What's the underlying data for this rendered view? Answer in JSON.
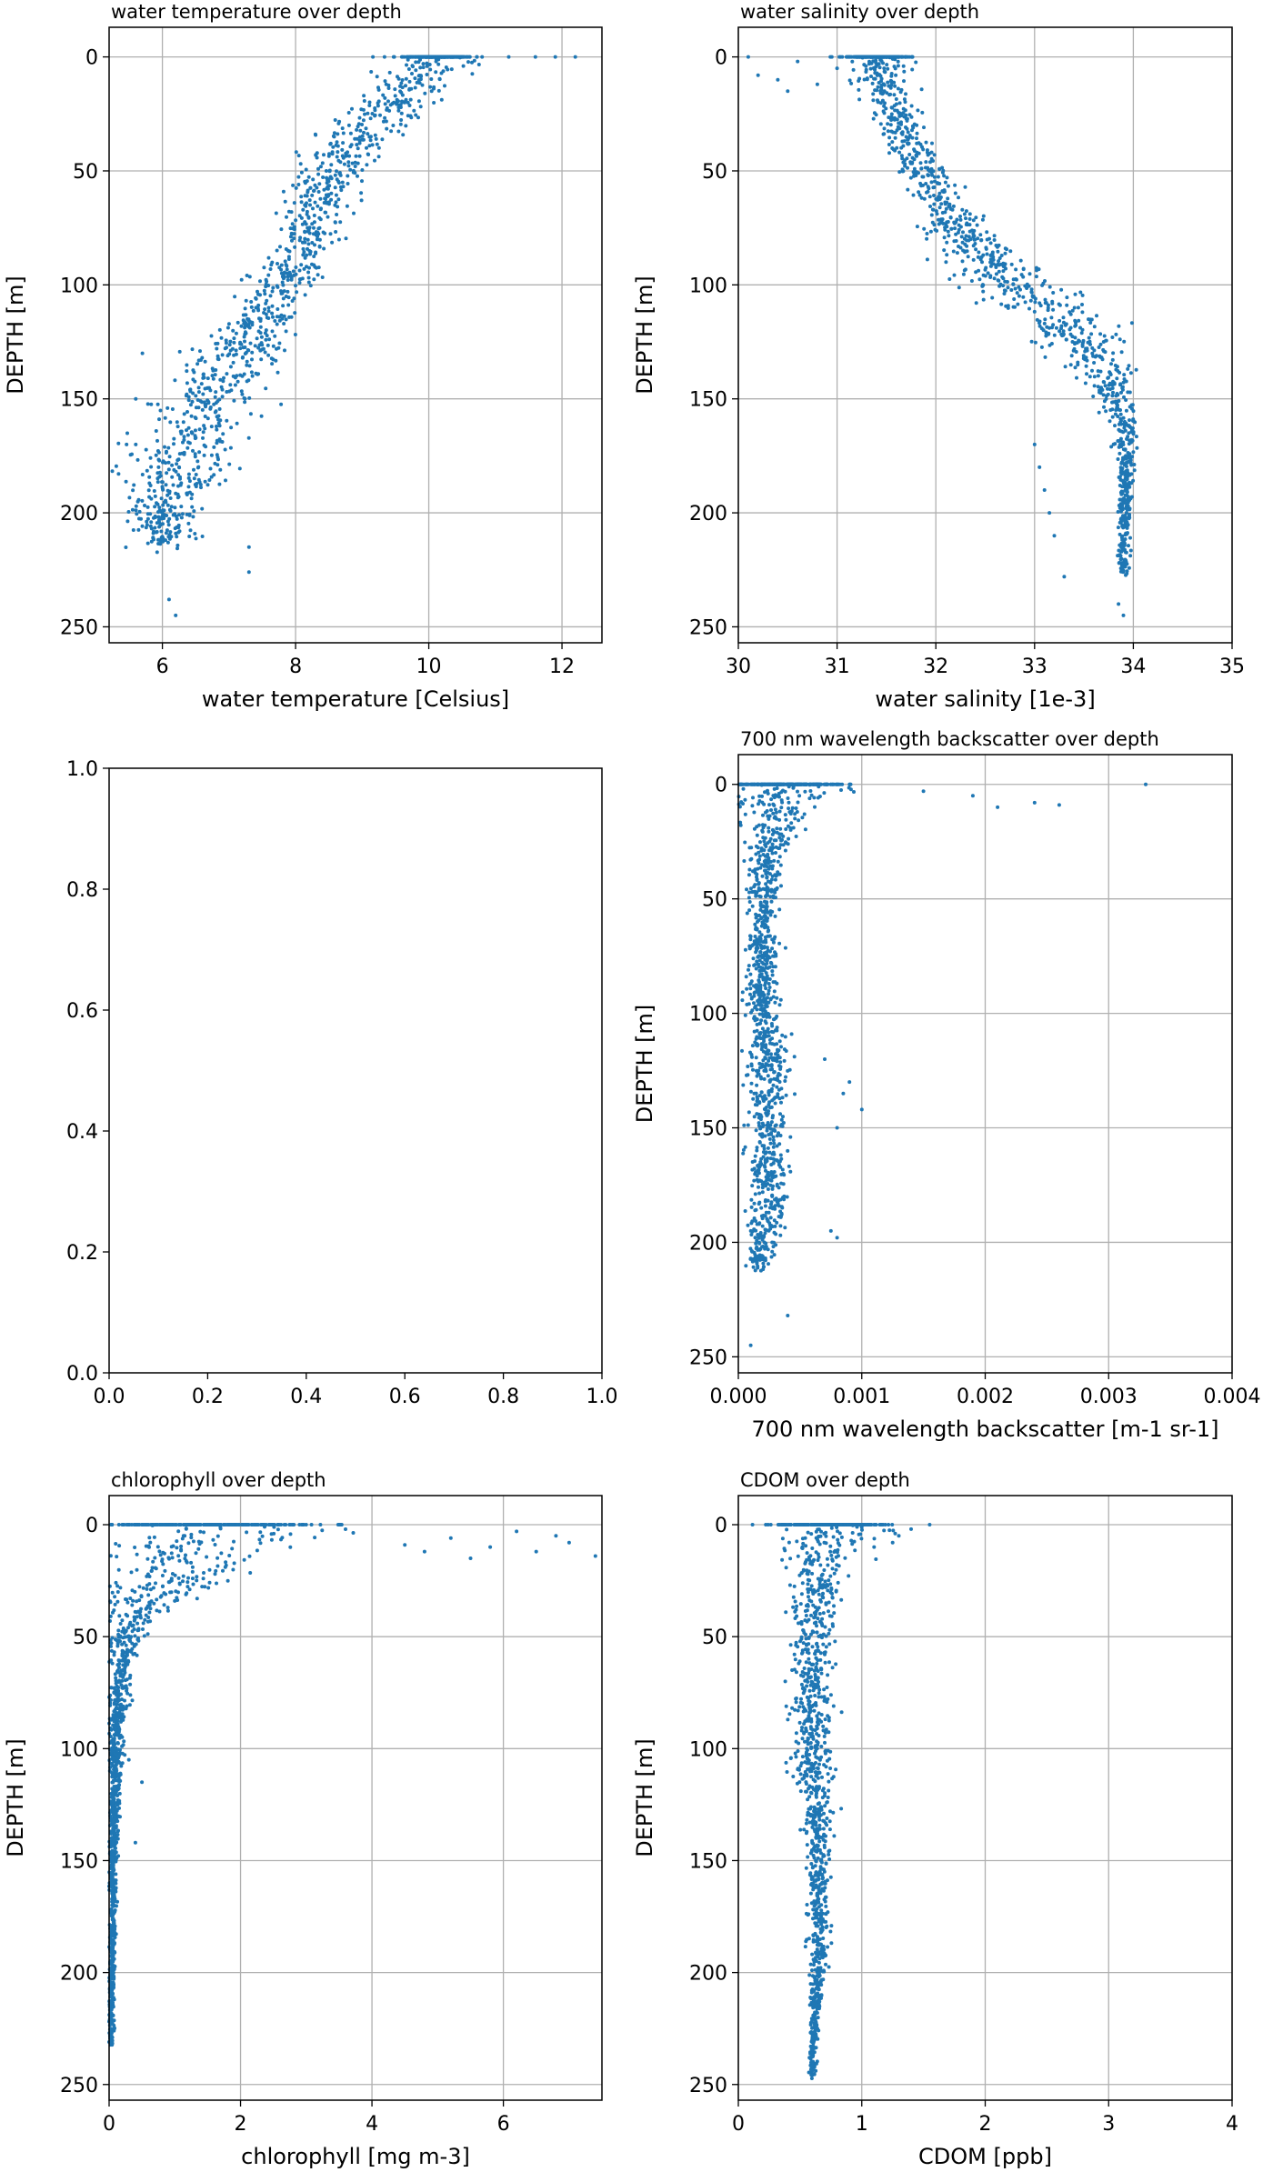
{
  "figure": {
    "background": "#ffffff",
    "marker_color": "#1f77b4"
  },
  "chart_data": [
    {
      "type": "scatter",
      "title": "water temperature over depth",
      "xlabel": "water temperature [Celsius]",
      "ylabel": "DEPTH [m]",
      "xlim": [
        5.2,
        12.6
      ],
      "ylim": [
        257,
        -13
      ],
      "y_inverted": true,
      "grid": true,
      "xticks": [
        6,
        8,
        10,
        12
      ],
      "xtick_labels": [
        "6",
        "8",
        "10",
        "12"
      ],
      "yticks": [
        0,
        50,
        100,
        150,
        200,
        250
      ],
      "ytick_labels": [
        "0",
        "50",
        "100",
        "150",
        "200",
        "250"
      ],
      "series": [
        {
          "color": "#1f77b4",
          "profile": [
            {
              "depth": 0,
              "x": 10.1,
              "spread": 0.45
            },
            {
              "depth": 10,
              "x": 9.8,
              "spread": 0.45
            },
            {
              "depth": 25,
              "x": 9.3,
              "spread": 0.5
            },
            {
              "depth": 40,
              "x": 8.8,
              "spread": 0.45
            },
            {
              "depth": 60,
              "x": 8.4,
              "spread": 0.4
            },
            {
              "depth": 80,
              "x": 8.2,
              "spread": 0.35
            },
            {
              "depth": 100,
              "x": 7.8,
              "spread": 0.4
            },
            {
              "depth": 120,
              "x": 7.3,
              "spread": 0.45
            },
            {
              "depth": 140,
              "x": 6.9,
              "spread": 0.55
            },
            {
              "depth": 160,
              "x": 6.5,
              "spread": 0.6
            },
            {
              "depth": 180,
              "x": 6.2,
              "spread": 0.6
            },
            {
              "depth": 200,
              "x": 6.0,
              "spread": 0.45
            },
            {
              "depth": 215,
              "x": 6.0,
              "spread": 0.35
            }
          ],
          "outliers": [
            [
              10.4,
              0
            ],
            [
              10.8,
              0
            ],
            [
              11.2,
              0
            ],
            [
              11.6,
              0
            ],
            [
              11.9,
              0
            ],
            [
              12.2,
              0
            ],
            [
              5.6,
              150
            ],
            [
              5.6,
              170
            ],
            [
              5.7,
              130
            ],
            [
              6.2,
              245
            ],
            [
              6.1,
              238
            ],
            [
              7.3,
              226
            ],
            [
              7.3,
              215
            ]
          ]
        }
      ]
    },
    {
      "type": "scatter",
      "title": "water salinity over depth",
      "xlabel": "water salinity [1e-3]",
      "ylabel": "DEPTH [m]",
      "xlim": [
        30,
        35
      ],
      "ylim": [
        257,
        -13
      ],
      "y_inverted": true,
      "grid": true,
      "xticks": [
        30,
        31,
        32,
        33,
        34,
        35
      ],
      "xtick_labels": [
        "30",
        "31",
        "32",
        "33",
        "34",
        "35"
      ],
      "yticks": [
        0,
        50,
        100,
        150,
        200,
        250
      ],
      "ytick_labels": [
        "0",
        "50",
        "100",
        "150",
        "200",
        "250"
      ],
      "series": [
        {
          "color": "#1f77b4",
          "profile": [
            {
              "depth": 0,
              "x": 31.4,
              "spread": 0.25
            },
            {
              "depth": 15,
              "x": 31.5,
              "spread": 0.2
            },
            {
              "depth": 40,
              "x": 31.75,
              "spread": 0.2
            },
            {
              "depth": 60,
              "x": 32.0,
              "spread": 0.22
            },
            {
              "depth": 80,
              "x": 32.35,
              "spread": 0.3
            },
            {
              "depth": 100,
              "x": 32.8,
              "spread": 0.4
            },
            {
              "depth": 120,
              "x": 33.35,
              "spread": 0.4
            },
            {
              "depth": 140,
              "x": 33.75,
              "spread": 0.25
            },
            {
              "depth": 160,
              "x": 33.9,
              "spread": 0.12
            },
            {
              "depth": 180,
              "x": 33.92,
              "spread": 0.06
            },
            {
              "depth": 200,
              "x": 33.92,
              "spread": 0.05
            },
            {
              "depth": 225,
              "x": 33.9,
              "spread": 0.05
            }
          ],
          "outliers": [
            [
              30.1,
              0
            ],
            [
              30.2,
              8
            ],
            [
              30.4,
              10
            ],
            [
              30.6,
              2
            ],
            [
              30.8,
              12
            ],
            [
              31.0,
              5
            ],
            [
              30.5,
              15
            ],
            [
              33.0,
              170
            ],
            [
              33.1,
              190
            ],
            [
              33.2,
              210
            ],
            [
              33.3,
              228
            ],
            [
              33.05,
              180
            ],
            [
              33.15,
              200
            ],
            [
              33.85,
              240
            ],
            [
              33.9,
              245
            ]
          ]
        }
      ]
    },
    {
      "type": "scatter",
      "title": "",
      "xlabel": "",
      "ylabel": "",
      "xlim": [
        0,
        1
      ],
      "ylim": [
        0,
        1
      ],
      "y_inverted": false,
      "grid": false,
      "xticks": [
        0,
        0.2,
        0.4,
        0.6,
        0.8,
        1
      ],
      "xtick_labels": [
        "0.0",
        "0.2",
        "0.4",
        "0.6",
        "0.8",
        "1.0"
      ],
      "yticks": [
        0,
        0.2,
        0.4,
        0.6,
        0.8,
        1
      ],
      "ytick_labels": [
        "0.0",
        "0.2",
        "0.4",
        "0.6",
        "0.8",
        "1.0"
      ],
      "series": []
    },
    {
      "type": "scatter",
      "title": "700 nm wavelength backscatter over depth",
      "xlabel": "700 nm wavelength backscatter [m-1 sr-1]",
      "ylabel": "DEPTH [m]",
      "xlim": [
        0,
        0.004
      ],
      "ylim": [
        257,
        -13
      ],
      "y_inverted": true,
      "grid": true,
      "xticks": [
        0,
        0.001,
        0.002,
        0.003,
        0.004
      ],
      "xtick_labels": [
        "0.000",
        "0.001",
        "0.002",
        "0.003",
        "0.004"
      ],
      "yticks": [
        0,
        50,
        100,
        150,
        200,
        250
      ],
      "ytick_labels": [
        "0",
        "50",
        "100",
        "150",
        "200",
        "250"
      ],
      "series": [
        {
          "color": "#1f77b4",
          "profile": [
            {
              "depth": 0,
              "x": 0.0004,
              "spread": 0.00035
            },
            {
              "depth": 10,
              "x": 0.00035,
              "spread": 0.00028
            },
            {
              "depth": 30,
              "x": 0.00022,
              "spread": 0.00012
            },
            {
              "depth": 60,
              "x": 0.0002,
              "spread": 0.0001
            },
            {
              "depth": 100,
              "x": 0.0002,
              "spread": 0.0001
            },
            {
              "depth": 130,
              "x": 0.00025,
              "spread": 0.00015
            },
            {
              "depth": 160,
              "x": 0.00022,
              "spread": 0.00012
            },
            {
              "depth": 190,
              "x": 0.00025,
              "spread": 0.00013
            },
            {
              "depth": 210,
              "x": 0.00015,
              "spread": 6e-05
            }
          ],
          "outliers": [
            [
              0.0033,
              0
            ],
            [
              0.0026,
              9
            ],
            [
              0.0024,
              8
            ],
            [
              0.0021,
              10
            ],
            [
              0.0019,
              5
            ],
            [
              0.0015,
              3
            ],
            [
              0.0009,
              130
            ],
            [
              0.001,
              142
            ],
            [
              0.00085,
              135
            ],
            [
              0.0008,
              150
            ],
            [
              0.0007,
              120
            ],
            [
              0.00075,
              195
            ],
            [
              0.0008,
              198
            ],
            [
              0.0004,
              232
            ],
            [
              0.0001,
              245
            ]
          ]
        }
      ]
    },
    {
      "type": "scatter",
      "title": "chlorophyll over depth",
      "xlabel": "chlorophyll [mg m-3]",
      "ylabel": "DEPTH [m]",
      "xlim": [
        0,
        7.5
      ],
      "ylim": [
        257,
        -13
      ],
      "y_inverted": true,
      "grid": true,
      "xticks": [
        0,
        2,
        4,
        6
      ],
      "xtick_labels": [
        "0",
        "2",
        "4",
        "6"
      ],
      "yticks": [
        0,
        50,
        100,
        150,
        200,
        250
      ],
      "ytick_labels": [
        "0",
        "50",
        "100",
        "150",
        "200",
        "250"
      ],
      "series": [
        {
          "color": "#1f77b4",
          "profile": [
            {
              "depth": 0,
              "x": 1.5,
              "spread": 1.4
            },
            {
              "depth": 10,
              "x": 1.4,
              "spread": 1.2
            },
            {
              "depth": 25,
              "x": 0.9,
              "spread": 0.8
            },
            {
              "depth": 40,
              "x": 0.4,
              "spread": 0.35
            },
            {
              "depth": 60,
              "x": 0.2,
              "spread": 0.15
            },
            {
              "depth": 90,
              "x": 0.12,
              "spread": 0.1
            },
            {
              "depth": 130,
              "x": 0.07,
              "spread": 0.06
            },
            {
              "depth": 180,
              "x": 0.05,
              "spread": 0.04
            },
            {
              "depth": 230,
              "x": 0.03,
              "spread": 0.03
            }
          ],
          "outliers": [
            [
              7.4,
              14
            ],
            [
              7.0,
              8
            ],
            [
              6.8,
              5
            ],
            [
              6.5,
              12
            ],
            [
              6.2,
              3
            ],
            [
              5.8,
              10
            ],
            [
              5.5,
              15
            ],
            [
              5.2,
              6
            ],
            [
              4.8,
              12
            ],
            [
              4.5,
              9
            ],
            [
              0.5,
              115
            ],
            [
              0.4,
              142
            ],
            [
              0.3,
              105
            ]
          ]
        }
      ]
    },
    {
      "type": "scatter",
      "title": "CDOM over depth",
      "xlabel": "CDOM [ppb]",
      "ylabel": "DEPTH [m]",
      "xlim": [
        0,
        4
      ],
      "ylim": [
        257,
        -13
      ],
      "y_inverted": true,
      "grid": true,
      "xticks": [
        0,
        1,
        2,
        3,
        4
      ],
      "xtick_labels": [
        "0",
        "1",
        "2",
        "3",
        "4"
      ],
      "yticks": [
        0,
        50,
        100,
        150,
        200,
        250
      ],
      "ytick_labels": [
        "0",
        "50",
        "100",
        "150",
        "200",
        "250"
      ],
      "series": [
        {
          "color": "#1f77b4",
          "profile": [
            {
              "depth": 0,
              "x": 0.75,
              "spread": 0.35
            },
            {
              "depth": 20,
              "x": 0.65,
              "spread": 0.2
            },
            {
              "depth": 60,
              "x": 0.6,
              "spread": 0.13
            },
            {
              "depth": 110,
              "x": 0.6,
              "spread": 0.13
            },
            {
              "depth": 150,
              "x": 0.65,
              "spread": 0.07
            },
            {
              "depth": 190,
              "x": 0.65,
              "spread": 0.07
            },
            {
              "depth": 220,
              "x": 0.62,
              "spread": 0.03
            },
            {
              "depth": 245,
              "x": 0.6,
              "spread": 0.02
            }
          ],
          "outliers": [
            [
              1.55,
              0
            ],
            [
              1.4,
              2
            ],
            [
              1.3,
              5
            ],
            [
              1.25,
              8
            ],
            [
              1.1,
              10
            ],
            [
              0.4,
              0
            ],
            [
              0.38,
              70
            ]
          ]
        }
      ]
    }
  ]
}
